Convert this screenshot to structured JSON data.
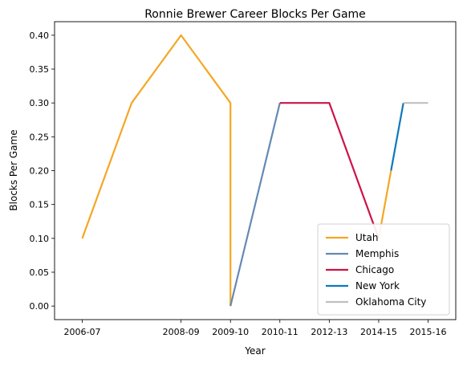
{
  "chart_data": {
    "type": "line",
    "title": "Ronnie Brewer Career Blocks Per Game",
    "xlabel": "Year",
    "ylabel": "Blocks Per Game",
    "x_tick_labels": [
      "2006-07",
      "2008-09",
      "2009-10",
      "2010-11",
      "2012-13",
      "2014-15",
      "2015-16"
    ],
    "x_tick_positions": [
      0,
      2,
      3,
      4,
      5,
      6,
      7
    ],
    "xlim": [
      -0.56,
      7.56
    ],
    "ylim": [
      -0.02,
      0.42
    ],
    "y_ticks": [
      0.0,
      0.05,
      0.1,
      0.15,
      0.2,
      0.25,
      0.3,
      0.35,
      0.4
    ],
    "y_tick_labels": [
      "0.00",
      "0.05",
      "0.10",
      "0.15",
      "0.20",
      "0.25",
      "0.30",
      "0.35",
      "0.40"
    ],
    "grid": false,
    "legend_position": "bottom-right",
    "series": [
      {
        "name": "Utah",
        "color": "#f5a623",
        "points": [
          {
            "x": 0,
            "y": 0.1
          },
          {
            "x": 1,
            "y": 0.3
          },
          {
            "x": 2,
            "y": 0.4
          },
          {
            "x": 3,
            "y": 0.3
          },
          {
            "x": 3,
            "y": 0.0
          }
        ]
      },
      {
        "name": "Memphis",
        "color": "#6589b5",
        "points": [
          {
            "x": 3,
            "y": 0.0
          },
          {
            "x": 4,
            "y": 0.3
          }
        ]
      },
      {
        "name": "Chicago",
        "color": "#cc1346",
        "points": [
          {
            "x": 4,
            "y": 0.3
          },
          {
            "x": 5,
            "y": 0.3
          },
          {
            "x": 6,
            "y": 0.1
          }
        ]
      },
      {
        "name": "New York",
        "color": "#0f78bb",
        "points": [
          {
            "x": 7,
            "y": 0.2
          },
          {
            "x": 8,
            "y": 0.3
          }
        ]
      },
      {
        "name": "Oklahoma City",
        "color": "#c0c0c0",
        "points": [
          {
            "x": 8,
            "y": 0.3
          },
          {
            "x": 9,
            "y": 0.3
          }
        ]
      },
      {
        "name": "Utah",
        "color": "#f5a623",
        "points": [
          {
            "x": 6,
            "y": 0.1
          },
          {
            "x": 7,
            "y": 0.2
          }
        ]
      }
    ]
  }
}
